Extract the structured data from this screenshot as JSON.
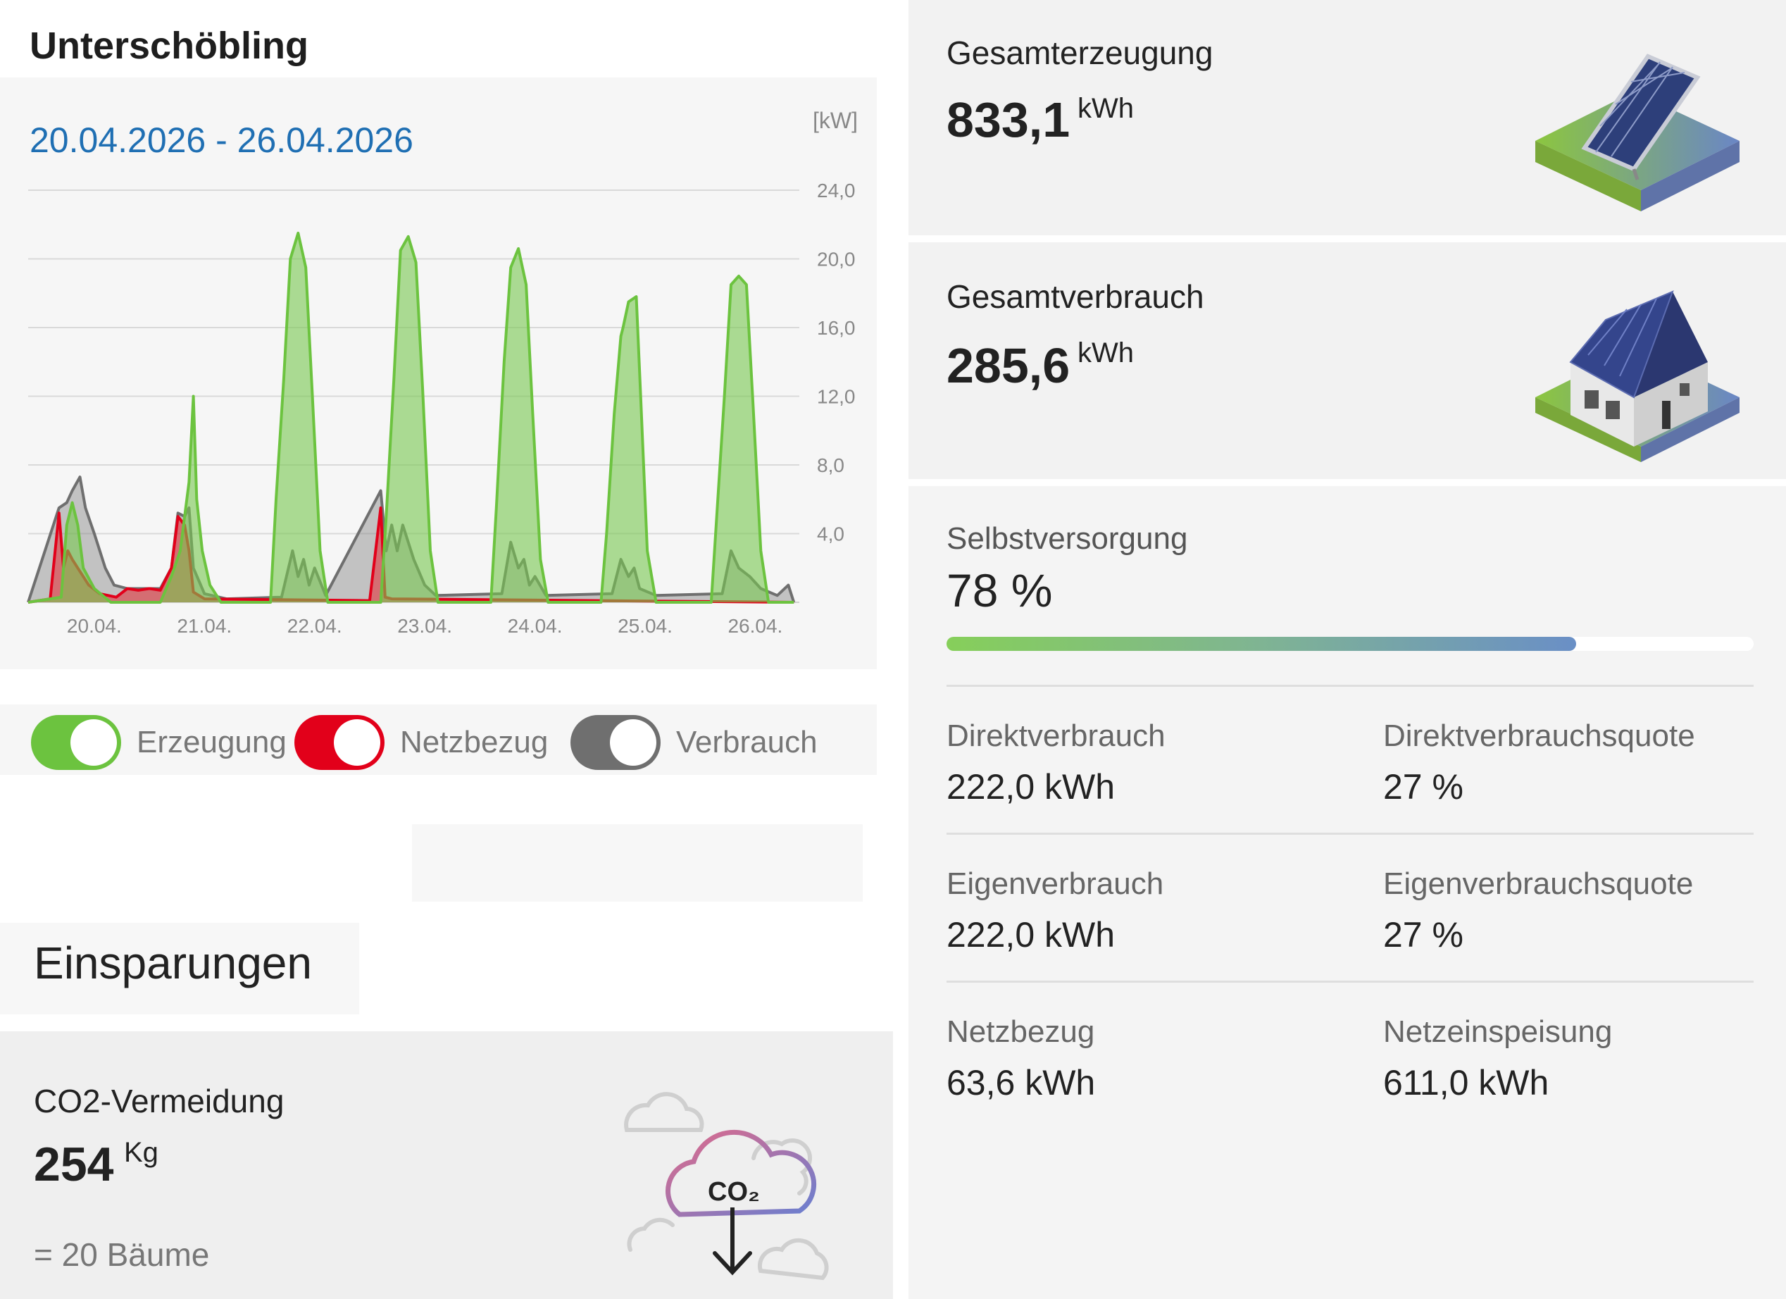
{
  "site_name": "Unterschöbling",
  "chart": {
    "date_range": "20.04.2026 - 26.04.2026",
    "unit": "[kW]",
    "legend": [
      {
        "label": "Erzeugung",
        "color": "#6cc33f"
      },
      {
        "label": "Netzbezug",
        "color": "#e2001a"
      },
      {
        "label": "Verbrauch",
        "color": "#6f6f6f"
      }
    ]
  },
  "chart_data": {
    "type": "area",
    "ylabel": "[kW]",
    "ylim": [
      0,
      24
    ],
    "y_ticks": [
      "24,0",
      "20,0",
      "16,0",
      "12,0",
      "8,0",
      "4,0"
    ],
    "x_tick_labels": [
      "20.04.",
      "21.04.",
      "22.04.",
      "23.04.",
      "24.04.",
      "25.04.",
      "26.04."
    ],
    "series": [
      {
        "name": "Erzeugung",
        "color": "#6cc33f",
        "points": [
          [
            0,
            0
          ],
          [
            0.3,
            0.3
          ],
          [
            0.35,
            4.5
          ],
          [
            0.4,
            5.8
          ],
          [
            0.45,
            4.5
          ],
          [
            0.5,
            2.0
          ],
          [
            0.6,
            0.8
          ],
          [
            0.75,
            0
          ],
          [
            1.2,
            0
          ],
          [
            1.3,
            1.5
          ],
          [
            1.38,
            3.0
          ],
          [
            1.46,
            7.0
          ],
          [
            1.5,
            12.0
          ],
          [
            1.53,
            6.0
          ],
          [
            1.58,
            3.0
          ],
          [
            1.65,
            1.0
          ],
          [
            1.75,
            0
          ],
          [
            2.2,
            0
          ],
          [
            2.25,
            6.0
          ],
          [
            2.32,
            13.0
          ],
          [
            2.38,
            20.0
          ],
          [
            2.45,
            21.5
          ],
          [
            2.52,
            19.5
          ],
          [
            2.58,
            12.0
          ],
          [
            2.65,
            3.0
          ],
          [
            2.72,
            0
          ],
          [
            3.2,
            0
          ],
          [
            3.25,
            5.0
          ],
          [
            3.32,
            13.0
          ],
          [
            3.38,
            20.5
          ],
          [
            3.45,
            21.3
          ],
          [
            3.52,
            19.8
          ],
          [
            3.58,
            12.5
          ],
          [
            3.65,
            3.0
          ],
          [
            3.72,
            0
          ],
          [
            4.2,
            0
          ],
          [
            4.25,
            5.5
          ],
          [
            4.32,
            14.0
          ],
          [
            4.38,
            19.5
          ],
          [
            4.45,
            20.6
          ],
          [
            4.52,
            18.5
          ],
          [
            4.58,
            11.0
          ],
          [
            4.65,
            2.5
          ],
          [
            4.72,
            0
          ],
          [
            5.2,
            0
          ],
          [
            5.25,
            4.0
          ],
          [
            5.32,
            11.0
          ],
          [
            5.38,
            15.5
          ],
          [
            5.4,
            16.0
          ],
          [
            5.45,
            17.5
          ],
          [
            5.52,
            17.8
          ],
          [
            5.56,
            12.0
          ],
          [
            5.62,
            3.0
          ],
          [
            5.7,
            0
          ],
          [
            6.2,
            0
          ],
          [
            6.25,
            5.0
          ],
          [
            6.32,
            12.0
          ],
          [
            6.38,
            18.5
          ],
          [
            6.45,
            19.0
          ],
          [
            6.52,
            18.5
          ],
          [
            6.58,
            11.5
          ],
          [
            6.65,
            3.0
          ],
          [
            6.72,
            0
          ],
          [
            6.95,
            0
          ]
        ]
      },
      {
        "name": "Netzbezug",
        "color": "#e2001a",
        "points": [
          [
            0,
            0
          ],
          [
            0.2,
            0.2
          ],
          [
            0.28,
            5.2
          ],
          [
            0.32,
            2.0
          ],
          [
            0.36,
            3.0
          ],
          [
            0.4,
            2.5
          ],
          [
            0.45,
            2.0
          ],
          [
            0.55,
            1.0
          ],
          [
            0.65,
            0.5
          ],
          [
            0.8,
            0.3
          ],
          [
            0.9,
            0.8
          ],
          [
            1.0,
            0.7
          ],
          [
            1.1,
            0.8
          ],
          [
            1.2,
            0.7
          ],
          [
            1.3,
            2.0
          ],
          [
            1.36,
            5.0
          ],
          [
            1.42,
            4.5
          ],
          [
            1.46,
            3.0
          ],
          [
            1.5,
            0.6
          ],
          [
            1.6,
            0.2
          ],
          [
            3.1,
            0.1
          ],
          [
            3.2,
            5.5
          ],
          [
            3.24,
            0.3
          ],
          [
            3.3,
            0.2
          ],
          [
            6.95,
            0
          ]
        ]
      },
      {
        "name": "Verbrauch",
        "color": "#6f6f6f",
        "points": [
          [
            0,
            0
          ],
          [
            0.28,
            5.5
          ],
          [
            0.35,
            5.8
          ],
          [
            0.4,
            6.5
          ],
          [
            0.47,
            7.3
          ],
          [
            0.52,
            5.5
          ],
          [
            0.6,
            4.0
          ],
          [
            0.65,
            3.0
          ],
          [
            0.7,
            2.0
          ],
          [
            0.78,
            1.0
          ],
          [
            0.9,
            0.8
          ],
          [
            1.2,
            0.8
          ],
          [
            1.3,
            2.0
          ],
          [
            1.36,
            5.2
          ],
          [
            1.42,
            5.0
          ],
          [
            1.46,
            5.5
          ],
          [
            1.5,
            2.0
          ],
          [
            1.6,
            0.5
          ],
          [
            1.8,
            0.2
          ],
          [
            2.3,
            0.3
          ],
          [
            2.4,
            3.0
          ],
          [
            2.45,
            1.5
          ],
          [
            2.5,
            2.5
          ],
          [
            2.55,
            1.0
          ],
          [
            2.6,
            2.0
          ],
          [
            2.7,
            0.4
          ],
          [
            3.2,
            6.5
          ],
          [
            3.25,
            3.0
          ],
          [
            3.3,
            4.5
          ],
          [
            3.35,
            3.0
          ],
          [
            3.4,
            4.5
          ],
          [
            3.5,
            2.5
          ],
          [
            3.6,
            1.0
          ],
          [
            3.7,
            0.4
          ],
          [
            4.3,
            0.5
          ],
          [
            4.38,
            3.5
          ],
          [
            4.45,
            2.0
          ],
          [
            4.5,
            2.5
          ],
          [
            4.55,
            1.0
          ],
          [
            4.6,
            1.5
          ],
          [
            4.7,
            0.4
          ],
          [
            5.3,
            0.5
          ],
          [
            5.38,
            2.5
          ],
          [
            5.45,
            1.5
          ],
          [
            5.5,
            2.0
          ],
          [
            5.55,
            0.8
          ],
          [
            5.7,
            0.4
          ],
          [
            6.3,
            0.5
          ],
          [
            6.38,
            3.0
          ],
          [
            6.45,
            2.0
          ],
          [
            6.55,
            1.5
          ],
          [
            6.65,
            0.8
          ],
          [
            6.8,
            0.4
          ],
          [
            6.9,
            1.0
          ],
          [
            6.95,
            0
          ]
        ]
      }
    ]
  },
  "savings": {
    "title": "Einsparungen",
    "co2_label": "CO2-Vermeidung",
    "co2_value": "254",
    "co2_unit": "Kg",
    "trees": "= 20 Bäume",
    "icon_text": "CO₂"
  },
  "totals": {
    "production": {
      "label": "Gesamterzeugung",
      "value": "833,1",
      "unit": "kWh"
    },
    "consumption": {
      "label": "Gesamtverbrauch",
      "value": "285,6",
      "unit": "kWh"
    }
  },
  "self_supply": {
    "label": "Selbstversorgung",
    "value": "78 %",
    "fraction": 0.78,
    "rows": [
      [
        {
          "label": "Direktverbrauch",
          "value": "222,0 kWh"
        },
        {
          "label": "Direktverbrauchsquote",
          "value": "27 %"
        }
      ],
      [
        {
          "label": "Eigenverbrauch",
          "value": "222,0 kWh"
        },
        {
          "label": "Eigenverbrauchsquote",
          "value": "27 %"
        }
      ],
      [
        {
          "label": "Netzbezug",
          "value": "63,6 kWh"
        },
        {
          "label": "Netzeinspeisung",
          "value": "611,0 kWh"
        }
      ]
    ]
  }
}
